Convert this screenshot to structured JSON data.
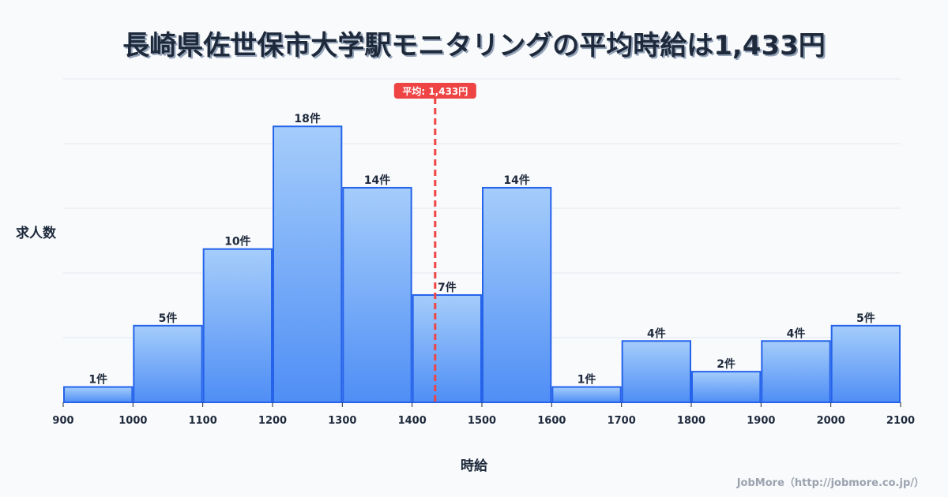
{
  "title": "長崎県佐世保市大学駅モニタリングの平均時給は1,433円",
  "footer": "JobMore（http://jobmore.co.jp/）",
  "colors": {
    "bar_top": "#a5cdfb",
    "bar_bottom": "#4f8ef5",
    "bar_stroke": "#2563eb",
    "avg_line": "#ef4444",
    "grid": "#e2e8f0",
    "text": "#1e293b"
  },
  "chart_data": {
    "type": "bar",
    "title": "長崎県佐世保市大学駅モニタリングの平均時給は1,433円",
    "xlabel": "時給",
    "ylabel": "求人数",
    "bins": [
      [
        900,
        1000
      ],
      [
        1000,
        1100
      ],
      [
        1100,
        1200
      ],
      [
        1200,
        1300
      ],
      [
        1300,
        1400
      ],
      [
        1400,
        1500
      ],
      [
        1500,
        1600
      ],
      [
        1600,
        1700
      ],
      [
        1700,
        1800
      ],
      [
        1800,
        1900
      ],
      [
        1900,
        2000
      ],
      [
        2000,
        2100
      ]
    ],
    "categories": [
      "900-1000",
      "1000-1100",
      "1100-1200",
      "1200-1300",
      "1300-1400",
      "1400-1500",
      "1500-1600",
      "1600-1700",
      "1700-1800",
      "1800-1900",
      "1900-2000",
      "2000-2100"
    ],
    "values": [
      1,
      5,
      10,
      18,
      14,
      7,
      14,
      1,
      4,
      2,
      4,
      5
    ],
    "value_labels": [
      "1件",
      "5件",
      "10件",
      "18件",
      "14件",
      "7件",
      "14件",
      "1件",
      "4件",
      "2件",
      "4件",
      "5件"
    ],
    "x_ticks": [
      "900",
      "1000",
      "1100",
      "1200",
      "1300",
      "1400",
      "1500",
      "1600",
      "1700",
      "1800",
      "1900",
      "2000",
      "2100"
    ],
    "xlim": [
      900,
      2100
    ],
    "ylim": [
      0,
      21.1
    ],
    "grid": true,
    "average": {
      "value": 1433,
      "label": "平均: 1,433円"
    }
  }
}
